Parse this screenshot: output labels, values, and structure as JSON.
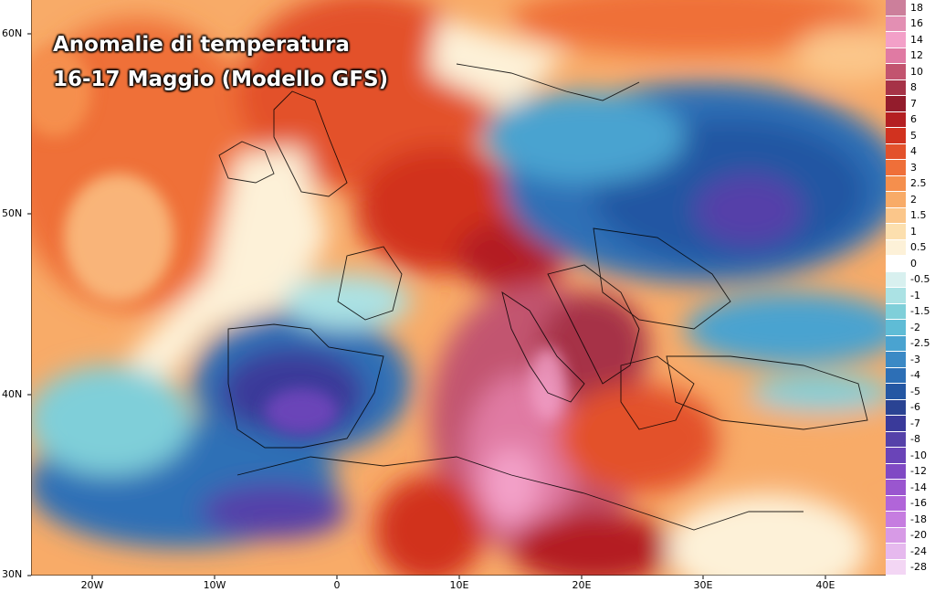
{
  "title": {
    "line1": "Anomalie di temperatura",
    "line2": "16-17 Maggio (Modello GFS)"
  },
  "axes": {
    "y_labels": [
      "60N",
      "50N",
      "40N",
      "30N"
    ],
    "x_labels": [
      "20W",
      "10W",
      "0",
      "10E",
      "20E",
      "30E",
      "40E"
    ]
  },
  "legend": {
    "entries": [
      {
        "label": "18",
        "color": "#cc7f9b"
      },
      {
        "label": "16",
        "color": "#e38fb3"
      },
      {
        "label": "14",
        "color": "#f3a0c8"
      },
      {
        "label": "12",
        "color": "#e07aa3"
      },
      {
        "label": "10",
        "color": "#c2546f"
      },
      {
        "label": "8",
        "color": "#a63347"
      },
      {
        "label": "7",
        "color": "#931c2c"
      },
      {
        "label": "6",
        "color": "#b41f22"
      },
      {
        "label": "5",
        "color": "#d1321f"
      },
      {
        "label": "4",
        "color": "#e3512b"
      },
      {
        "label": "3",
        "color": "#ef6f39"
      },
      {
        "label": "2.5",
        "color": "#f58f4d"
      },
      {
        "label": "2",
        "color": "#f8ab68"
      },
      {
        "label": "1.5",
        "color": "#fbc68a"
      },
      {
        "label": "1",
        "color": "#fcdfae"
      },
      {
        "label": "0.5",
        "color": "#fdf1d8"
      },
      {
        "label": "0",
        "color": "#ffffff"
      },
      {
        "label": "-0.5",
        "color": "#d8f0ef"
      },
      {
        "label": "-1",
        "color": "#abe2e4"
      },
      {
        "label": "-1.5",
        "color": "#7fcfd9"
      },
      {
        "label": "-2",
        "color": "#5fbcd6"
      },
      {
        "label": "-2.5",
        "color": "#4aa3d0"
      },
      {
        "label": "-3",
        "color": "#3b89c5"
      },
      {
        "label": "-4",
        "color": "#2d6fb6"
      },
      {
        "label": "-5",
        "color": "#2457a3"
      },
      {
        "label": "-6",
        "color": "#2a4393"
      },
      {
        "label": "-7",
        "color": "#3a3a9a"
      },
      {
        "label": "-8",
        "color": "#5541a9"
      },
      {
        "label": "-10",
        "color": "#6a44b8"
      },
      {
        "label": "-12",
        "color": "#8049c4"
      },
      {
        "label": "-14",
        "color": "#9a56cf"
      },
      {
        "label": "-16",
        "color": "#b165d9"
      },
      {
        "label": "-18",
        "color": "#c67de0"
      },
      {
        "label": "-20",
        "color": "#d79ae6"
      },
      {
        "label": "-24",
        "color": "#e6b9ee"
      },
      {
        "label": "-28",
        "color": "#f3d6f4"
      }
    ]
  }
}
